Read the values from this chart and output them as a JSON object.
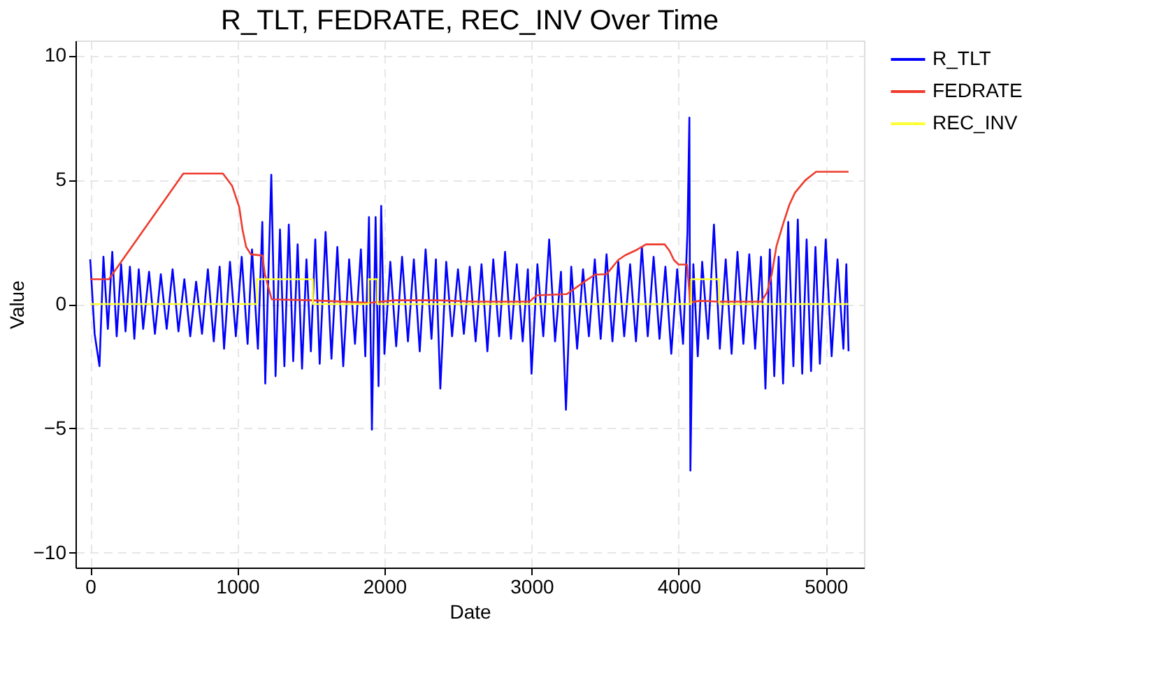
{
  "chart_data": {
    "type": "line",
    "title": "R_TLT, FEDRATE, REC_INV Over Time",
    "xlabel": "Date",
    "ylabel": "Value",
    "xlim": [
      -100,
      5260
    ],
    "ylim": [
      -10.6,
      10.6
    ],
    "xticks": [
      0,
      1000,
      2000,
      3000,
      4000,
      5000
    ],
    "yticks": [
      -10,
      -5,
      0,
      5,
      10
    ],
    "grid": true,
    "legend": "right",
    "line_style": "solid",
    "marker": "none",
    "series": [
      {
        "name": "R_TLT",
        "color": "#0000ff",
        "x": [
          0,
          30,
          63,
          90,
          120,
          150,
          180,
          210,
          240,
          270,
          300,
          330,
          360,
          400,
          440,
          480,
          520,
          560,
          600,
          640,
          680,
          720,
          760,
          800,
          840,
          880,
          910,
          950,
          990,
          1030,
          1070,
          1100,
          1140,
          1170,
          1190,
          1231,
          1260,
          1290,
          1320,
          1350,
          1380,
          1410,
          1440,
          1470,
          1500,
          1530,
          1560,
          1600,
          1640,
          1680,
          1720,
          1760,
          1800,
          1840,
          1870,
          1895,
          1915,
          1940,
          1960,
          1978,
          2000,
          2040,
          2080,
          2120,
          2160,
          2200,
          2240,
          2280,
          2320,
          2350,
          2380,
          2420,
          2460,
          2500,
          2540,
          2580,
          2620,
          2660,
          2700,
          2740,
          2780,
          2820,
          2860,
          2900,
          2940,
          2975,
          3000,
          3040,
          3080,
          3120,
          3160,
          3200,
          3234,
          3270,
          3310,
          3350,
          3390,
          3430,
          3470,
          3510,
          3550,
          3590,
          3630,
          3670,
          3710,
          3750,
          3790,
          3830,
          3870,
          3910,
          3950,
          3990,
          4030,
          4060,
          4073,
          4080,
          4100,
          4130,
          4160,
          4200,
          4240,
          4280,
          4320,
          4360,
          4400,
          4440,
          4480,
          4520,
          4560,
          4590,
          4620,
          4650,
          4680,
          4710,
          4745,
          4780,
          4810,
          4840,
          4870,
          4900,
          4930,
          4960,
          5000,
          5040,
          5080,
          5120,
          5140,
          5155
        ],
        "values": [
          1.8,
          -1.2,
          -2.5,
          1.9,
          -1.0,
          2.1,
          -1.3,
          1.6,
          -1.1,
          1.5,
          -1.4,
          1.4,
          -1.0,
          1.3,
          -1.2,
          1.2,
          -1.0,
          1.4,
          -1.1,
          1.0,
          -1.3,
          0.9,
          -1.2,
          1.4,
          -1.5,
          1.5,
          -1.8,
          1.7,
          -1.3,
          1.9,
          -1.6,
          2.2,
          -1.8,
          3.3,
          -3.2,
          5.2,
          -2.9,
          3.0,
          -2.5,
          3.2,
          -2.3,
          2.4,
          -2.6,
          1.8,
          -1.9,
          2.6,
          -2.4,
          2.9,
          -2.2,
          2.3,
          -2.5,
          1.8,
          -1.6,
          2.2,
          -2.1,
          3.5,
          -5.05,
          3.5,
          -3.3,
          3.95,
          -2.0,
          1.7,
          -1.7,
          1.9,
          -1.5,
          1.8,
          -1.9,
          2.2,
          -1.4,
          1.8,
          -3.4,
          1.7,
          -1.3,
          1.4,
          -1.2,
          1.5,
          -1.5,
          1.6,
          -1.9,
          1.8,
          -1.3,
          2.1,
          -1.4,
          1.6,
          -1.5,
          1.4,
          -2.8,
          1.6,
          -1.3,
          2.6,
          -1.5,
          1.3,
          -4.25,
          1.5,
          -1.8,
          1.4,
          -1.3,
          1.8,
          -1.4,
          2.0,
          -1.5,
          1.7,
          -1.3,
          1.6,
          -1.5,
          2.3,
          -1.3,
          1.9,
          -1.4,
          1.5,
          -2.0,
          1.4,
          -1.6,
          2.9,
          7.5,
          -6.7,
          1.6,
          -2.1,
          1.7,
          -1.4,
          3.2,
          -1.8,
          1.8,
          -2.0,
          2.1,
          -1.6,
          2.0,
          -1.8,
          1.9,
          -3.4,
          2.2,
          -2.9,
          1.9,
          -3.2,
          3.3,
          -2.5,
          3.4,
          -2.8,
          2.6,
          -2.7,
          2.3,
          -2.4,
          2.6,
          -2.1,
          1.8,
          -1.8,
          1.6,
          -1.9
        ]
      },
      {
        "name": "FEDRATE",
        "color": "#ee3b2d",
        "x": [
          0,
          127,
          633,
          902,
          965,
          1013,
          1035,
          1060,
          1092,
          1171,
          1187,
          1234,
          1500,
          1900,
          2070,
          2360,
          2608,
          2987,
          3035,
          3240,
          3367,
          3430,
          3510,
          3589,
          3636,
          3715,
          3778,
          3905,
          3937,
          3968,
          4000,
          4057,
          4079,
          4142,
          4269,
          4563,
          4601,
          4633,
          4665,
          4712,
          4753,
          4791,
          4861,
          4934,
          5155
        ],
        "values": [
          1.0,
          1.0,
          5.25,
          5.25,
          4.75,
          3.9,
          3.0,
          2.3,
          2.0,
          1.95,
          1.2,
          0.19,
          0.15,
          0.05,
          0.15,
          0.15,
          0.1,
          0.1,
          0.35,
          0.4,
          0.93,
          1.18,
          1.2,
          1.77,
          1.96,
          2.18,
          2.4,
          2.4,
          2.15,
          1.77,
          1.59,
          1.59,
          0.06,
          0.13,
          0.1,
          0.1,
          0.47,
          1.2,
          2.33,
          3.26,
          4.0,
          4.48,
          4.98,
          5.32,
          5.32
        ]
      },
      {
        "name": "REC_INV",
        "type": "step",
        "color": "#ffff33",
        "x": [
          0,
          1133,
          1513,
          1892,
          1953,
          4085,
          4275,
          5155
        ],
        "values": [
          0,
          1,
          0,
          1,
          0,
          1,
          0,
          0
        ]
      }
    ]
  }
}
